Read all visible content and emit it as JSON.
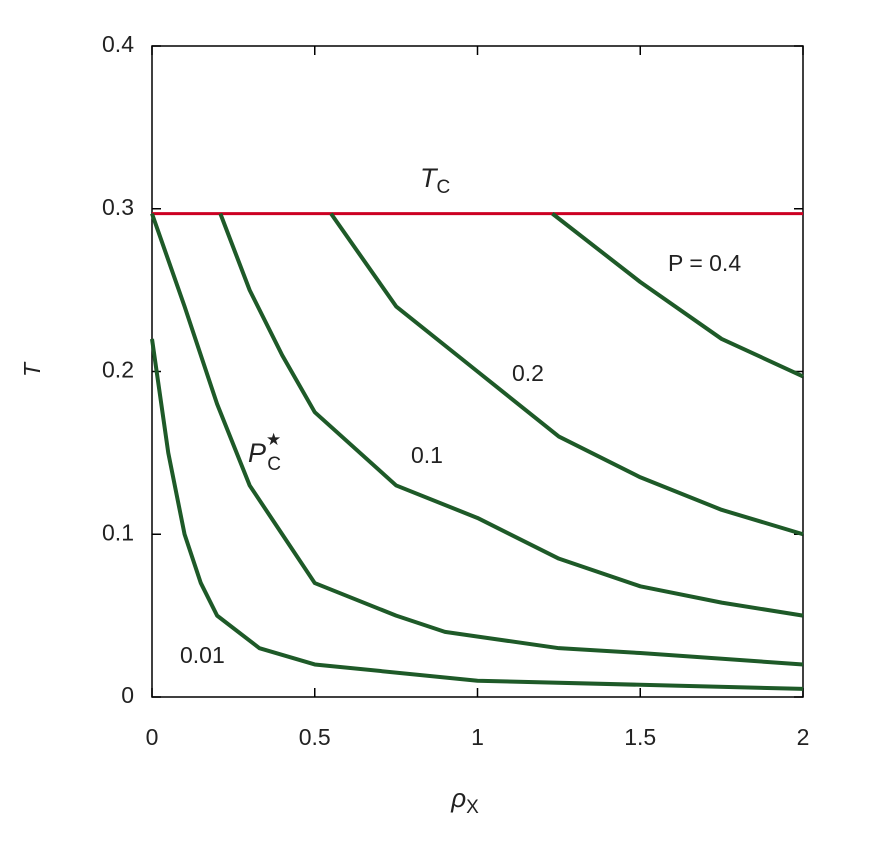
{
  "chart_data": {
    "type": "line",
    "xlabel": {
      "text": "ρ",
      "sub": "X"
    },
    "ylabel": "T",
    "xlim": [
      0,
      2
    ],
    "ylim": [
      0,
      0.4
    ],
    "xticks": [
      0,
      0.5,
      1,
      1.5,
      2
    ],
    "yticks": [
      0,
      0.1,
      0.2,
      0.3,
      0.4
    ],
    "hlines": [
      {
        "label": "T",
        "label_sub": "C",
        "value": 0.297,
        "color": "#cc0022"
      }
    ],
    "series": [
      {
        "name": "0.01",
        "color": "#1e5a28",
        "x": [
          0,
          0.05,
          0.1,
          0.15,
          0.2,
          0.33,
          0.5,
          1,
          2
        ],
        "values": [
          0.22,
          0.15,
          0.1,
          0.07,
          0.05,
          0.03,
          0.02,
          0.01,
          0.005
        ]
      },
      {
        "name": "P",
        "name_sub": "C",
        "name_sup": "★",
        "color": "#1e5a28",
        "x": [
          0,
          0.1,
          0.2,
          0.3,
          0.4,
          0.5,
          0.75,
          0.9,
          1.25,
          1.5,
          2
        ],
        "values": [
          0.297,
          0.24,
          0.18,
          0.13,
          0.1,
          0.07,
          0.05,
          0.04,
          0.03,
          0.027,
          0.02
        ]
      },
      {
        "name": "0.1",
        "color": "#1e5a28",
        "x": [
          0.21,
          0.3,
          0.4,
          0.5,
          0.75,
          1,
          1.25,
          1.5,
          1.75,
          2
        ],
        "values": [
          0.297,
          0.25,
          0.21,
          0.175,
          0.13,
          0.11,
          0.085,
          0.068,
          0.058,
          0.05
        ]
      },
      {
        "name": "0.2",
        "color": "#1e5a28",
        "x": [
          0.55,
          0.75,
          1,
          1.25,
          1.5,
          1.75,
          2
        ],
        "values": [
          0.297,
          0.24,
          0.2,
          0.16,
          0.135,
          0.115,
          0.1
        ]
      },
      {
        "name": "P = 0.4",
        "color": "#1e5a28",
        "x": [
          1.23,
          1.5,
          1.75,
          2
        ],
        "values": [
          0.297,
          0.255,
          0.22,
          0.197
        ]
      }
    ]
  }
}
